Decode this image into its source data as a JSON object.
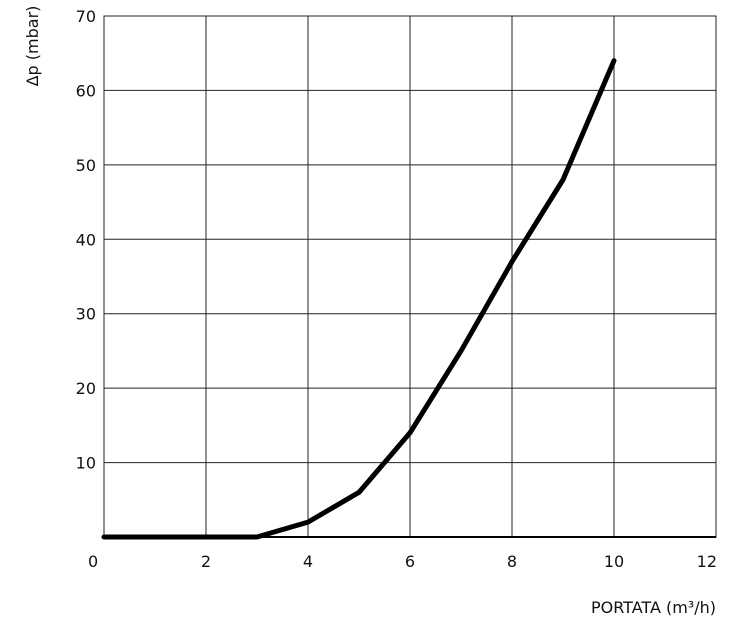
{
  "chart_data": {
    "type": "line",
    "xlabel": "PORTATA (m³/h)",
    "ylabel": "Δp (mbar)",
    "xlim": [
      0,
      12
    ],
    "ylim": [
      0,
      70
    ],
    "xticks": [
      0,
      2,
      4,
      6,
      8,
      10,
      12
    ],
    "yticks": [
      10,
      20,
      30,
      40,
      50,
      60,
      70
    ],
    "xtick_labels": [
      "0",
      "2",
      "4",
      "6",
      "8",
      "10",
      "12"
    ],
    "ytick_labels": [
      "10",
      "20",
      "30",
      "40",
      "50",
      "60",
      "70"
    ],
    "grid": true,
    "series": [
      {
        "x": [
          0,
          3,
          4,
          5,
          6,
          7,
          8,
          9,
          10
        ],
        "y": [
          0,
          0,
          2,
          6,
          14,
          25,
          37,
          48,
          64
        ]
      }
    ]
  }
}
